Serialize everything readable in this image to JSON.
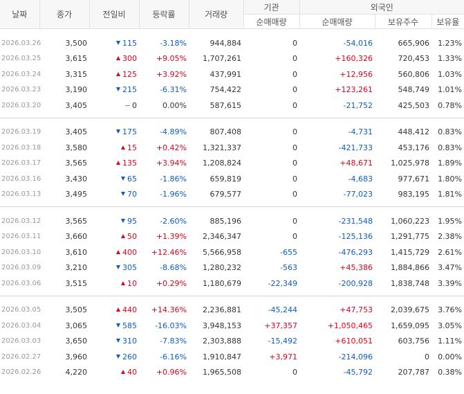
{
  "headers": {
    "date": "날짜",
    "close": "종가",
    "diff": "전일비",
    "rate": "등락률",
    "volume": "거래량",
    "institution": "기관",
    "foreign": "외국인",
    "inst_net": "순매매량",
    "foreign_net": "순매매량",
    "foreign_holdings": "보유주수",
    "foreign_ratio": "보유율"
  },
  "colors": {
    "up": "#e0001b",
    "down": "#0b5cc6"
  },
  "groups": [
    [
      {
        "date": "2026.03.26",
        "close": "3,500",
        "dir": "down",
        "diff": "115",
        "rate": "-3.18%",
        "volume": "944,884",
        "inst": "0",
        "fnet": "-54,016",
        "fhold": "665,906",
        "fratio": "1.23%"
      },
      {
        "date": "2026.03.25",
        "close": "3,615",
        "dir": "up",
        "diff": "300",
        "rate": "+9.05%",
        "volume": "1,707,261",
        "inst": "0",
        "fnet": "+160,326",
        "fhold": "720,453",
        "fratio": "1.33%"
      },
      {
        "date": "2026.03.24",
        "close": "3,315",
        "dir": "up",
        "diff": "125",
        "rate": "+3.92%",
        "volume": "437,991",
        "inst": "0",
        "fnet": "+12,956",
        "fhold": "560,806",
        "fratio": "1.03%"
      },
      {
        "date": "2026.03.23",
        "close": "3,190",
        "dir": "down",
        "diff": "215",
        "rate": "-6.31%",
        "volume": "754,422",
        "inst": "0",
        "fnet": "+123,261",
        "fhold": "548,749",
        "fratio": "1.01%"
      },
      {
        "date": "2026.03.20",
        "close": "3,405",
        "dir": "flat",
        "diff": "0",
        "rate": "0.00%",
        "volume": "587,615",
        "inst": "0",
        "fnet": "-21,752",
        "fhold": "425,503",
        "fratio": "0.78%"
      }
    ],
    [
      {
        "date": "2026.03.19",
        "close": "3,405",
        "dir": "down",
        "diff": "175",
        "rate": "-4.89%",
        "volume": "807,408",
        "inst": "0",
        "fnet": "-4,731",
        "fhold": "448,412",
        "fratio": "0.83%"
      },
      {
        "date": "2026.03.18",
        "close": "3,580",
        "dir": "up",
        "diff": "15",
        "rate": "+0.42%",
        "volume": "1,321,337",
        "inst": "0",
        "fnet": "-421,733",
        "fhold": "453,176",
        "fratio": "0.83%"
      },
      {
        "date": "2026.03.17",
        "close": "3,565",
        "dir": "up",
        "diff": "135",
        "rate": "+3.94%",
        "volume": "1,208,824",
        "inst": "0",
        "fnet": "+48,671",
        "fhold": "1,025,978",
        "fratio": "1.89%"
      },
      {
        "date": "2026.03.16",
        "close": "3,430",
        "dir": "down",
        "diff": "65",
        "rate": "-1.86%",
        "volume": "659,819",
        "inst": "0",
        "fnet": "-4,683",
        "fhold": "977,671",
        "fratio": "1.80%"
      },
      {
        "date": "2026.03.13",
        "close": "3,495",
        "dir": "down",
        "diff": "70",
        "rate": "-1.96%",
        "volume": "679,577",
        "inst": "0",
        "fnet": "-77,023",
        "fhold": "983,195",
        "fratio": "1.81%"
      }
    ],
    [
      {
        "date": "2026.03.12",
        "close": "3,565",
        "dir": "down",
        "diff": "95",
        "rate": "-2.60%",
        "volume": "885,196",
        "inst": "0",
        "fnet": "-231,548",
        "fhold": "1,060,223",
        "fratio": "1.95%"
      },
      {
        "date": "2026.03.11",
        "close": "3,660",
        "dir": "up",
        "diff": "50",
        "rate": "+1.39%",
        "volume": "2,346,347",
        "inst": "0",
        "fnet": "-125,136",
        "fhold": "1,291,775",
        "fratio": "2.38%"
      },
      {
        "date": "2026.03.10",
        "close": "3,610",
        "dir": "up",
        "diff": "400",
        "rate": "+12.46%",
        "volume": "5,566,958",
        "inst": "-655",
        "fnet": "-476,293",
        "fhold": "1,415,729",
        "fratio": "2.61%"
      },
      {
        "date": "2026.03.09",
        "close": "3,210",
        "dir": "down",
        "diff": "305",
        "rate": "-8.68%",
        "volume": "1,280,232",
        "inst": "-563",
        "fnet": "+45,386",
        "fhold": "1,884,866",
        "fratio": "3.47%"
      },
      {
        "date": "2026.03.06",
        "close": "3,515",
        "dir": "up",
        "diff": "10",
        "rate": "+0.29%",
        "volume": "1,180,679",
        "inst": "-22,349",
        "fnet": "-200,928",
        "fhold": "1,838,748",
        "fratio": "3.39%"
      }
    ],
    [
      {
        "date": "2026.03.05",
        "close": "3,505",
        "dir": "up",
        "diff": "440",
        "rate": "+14.36%",
        "volume": "2,236,881",
        "inst": "-45,244",
        "fnet": "+47,753",
        "fhold": "2,039,675",
        "fratio": "3.76%"
      },
      {
        "date": "2026.03.04",
        "close": "3,065",
        "dir": "down",
        "diff": "585",
        "rate": "-16.03%",
        "volume": "3,948,153",
        "inst": "+37,357",
        "fnet": "+1,050,465",
        "fhold": "1,659,095",
        "fratio": "3.05%"
      },
      {
        "date": "2026.03.03",
        "close": "3,650",
        "dir": "down",
        "diff": "310",
        "rate": "-7.83%",
        "volume": "2,303,888",
        "inst": "-15,492",
        "fnet": "+610,051",
        "fhold": "603,756",
        "fratio": "1.11%"
      },
      {
        "date": "2026.02.27",
        "close": "3,960",
        "dir": "down",
        "diff": "260",
        "rate": "-6.16%",
        "volume": "1,910,847",
        "inst": "+3,971",
        "fnet": "-214,096",
        "fhold": "0",
        "fratio": "0.00%"
      },
      {
        "date": "2026.02.26",
        "close": "4,220",
        "dir": "up",
        "diff": "40",
        "rate": "+0.96%",
        "volume": "1,965,508",
        "inst": "0",
        "fnet": "-45,792",
        "fhold": "207,787",
        "fratio": "0.38%"
      }
    ]
  ]
}
